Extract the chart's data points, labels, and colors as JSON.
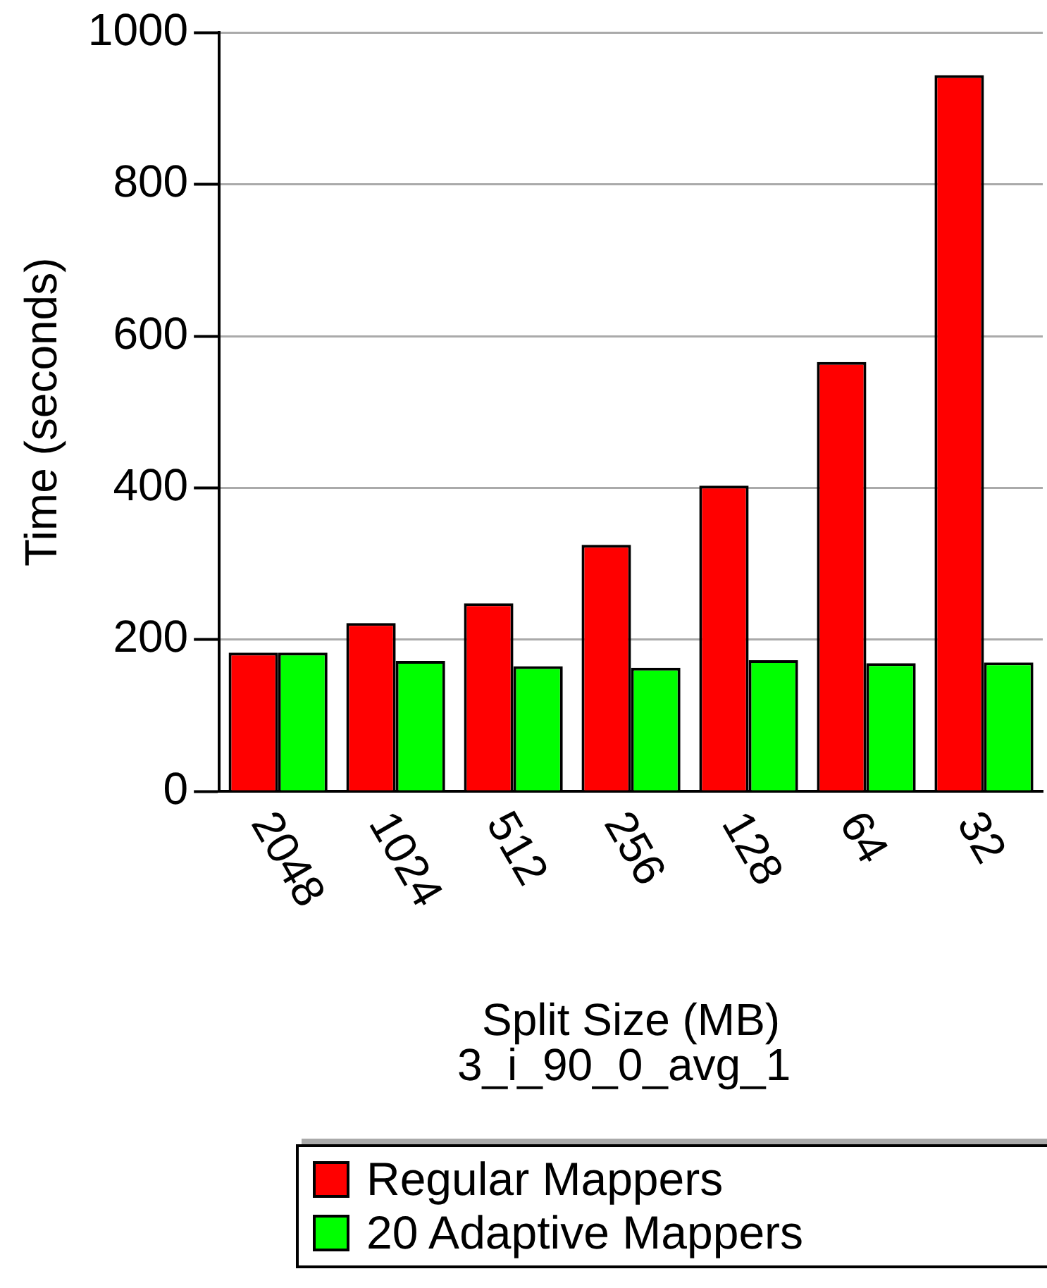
{
  "chart_data": {
    "type": "bar",
    "xlabel": "Split Size (MB)",
    "ylabel": "Time (seconds)",
    "annotations": [
      "3_i_90_0_avg_1"
    ],
    "categories": [
      "2048",
      "1024",
      "512",
      "256",
      "128",
      "64",
      "32"
    ],
    "series": [
      {
        "name": "Regular Mappers",
        "color": "#ff0000",
        "values": [
          183,
          222,
          248,
          325,
          403,
          566,
          944
        ]
      },
      {
        "name": "20 Adaptive Mappers",
        "color": "#00ff00",
        "values": [
          183,
          172,
          165,
          163,
          173,
          169,
          170
        ]
      }
    ],
    "ylim": [
      0,
      1000
    ],
    "yticks": [
      0,
      200,
      400,
      600,
      800,
      1000
    ],
    "grid": "y",
    "legend": "bottom"
  }
}
